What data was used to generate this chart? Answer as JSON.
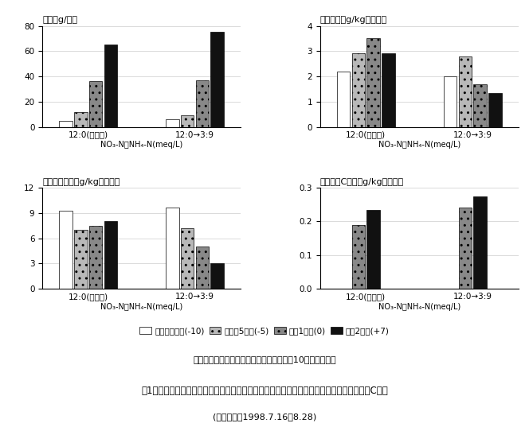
{
  "leaf_weight": {
    "title": "葉重（g/株）",
    "groups": [
      "12:0(無変更)",
      "12:0→3:9"
    ],
    "xlabel": "NO₃-N：NH₄-N(meq/L)",
    "ylim": [
      0,
      80
    ],
    "yticks": [
      0,
      20,
      40,
      60,
      80
    ],
    "bar_indices": [
      0,
      1,
      2,
      3
    ],
    "data": [
      [
        5,
        12,
        36,
        65
      ],
      [
        6,
        9,
        37,
        75
      ]
    ]
  },
  "nitrate": {
    "title": "熗酸含量（g/kg新鮮重）",
    "groups": [
      "12:0(無変更)",
      "12:0→3:9"
    ],
    "xlabel": "NO₃-N：NH₄-N(meq/L)",
    "ylim": [
      0,
      4
    ],
    "yticks": [
      0,
      1,
      2,
      3,
      4
    ],
    "bar_indices": [
      0,
      1,
      2,
      3
    ],
    "data": [
      [
        2.2,
        2.9,
        3.5,
        2.9
      ],
      [
        2.0,
        2.8,
        1.7,
        1.35
      ]
    ]
  },
  "oxalic": {
    "title": "シュウ酸含量（g/kg新鮮重）",
    "groups": [
      "12:0(無変更)",
      "12:0→3:9"
    ],
    "xlabel": "NO₃-N：NH₄-N(meq/L)",
    "ylim": [
      0,
      12
    ],
    "yticks": [
      0,
      3,
      6,
      9,
      12
    ],
    "bar_indices": [
      0,
      1,
      2,
      3
    ],
    "data": [
      [
        9.3,
        7.0,
        7.5,
        8.0
      ],
      [
        9.6,
        7.2,
        5.0,
        3.0
      ]
    ]
  },
  "vitaminC": {
    "title": "ビタミンC含量（g/kg新鮮重）",
    "groups": [
      "12:0(無変更)",
      "12:0→3:9"
    ],
    "xlabel": "NO₃-N：NH₄-N(meq/L)",
    "ylim": [
      0.0,
      0.3
    ],
    "yticks": [
      0.0,
      0.1,
      0.2,
      0.3
    ],
    "bar_indices": [
      2,
      3
    ],
    "data": [
      [
        0.19,
        0.235
      ],
      [
        0.24,
        0.275
      ]
    ]
  },
  "legend_labels": [
    "培養液変更時(-10)",
    "変更後5日目(-5)",
    "収穮1回目(0)",
    "収穮2回目(+7)"
  ],
  "bar_colors": [
    "white",
    "#b8b8b8",
    "#888888",
    "#111111"
  ],
  "bar_hatches": [
    "",
    "..",
    "..",
    ""
  ],
  "caption_line1": "収穮は無変更区を基準、培養液変更は収穮10日前に行った",
  "caption_line2": "図1　培養液の窒素形態とホウレンソウの生育時期別の葉重及び熗酸、シュウ酸、ビタミンC含量",
  "caption_line3": "(栽培期間：1998.7.16～8.28)"
}
